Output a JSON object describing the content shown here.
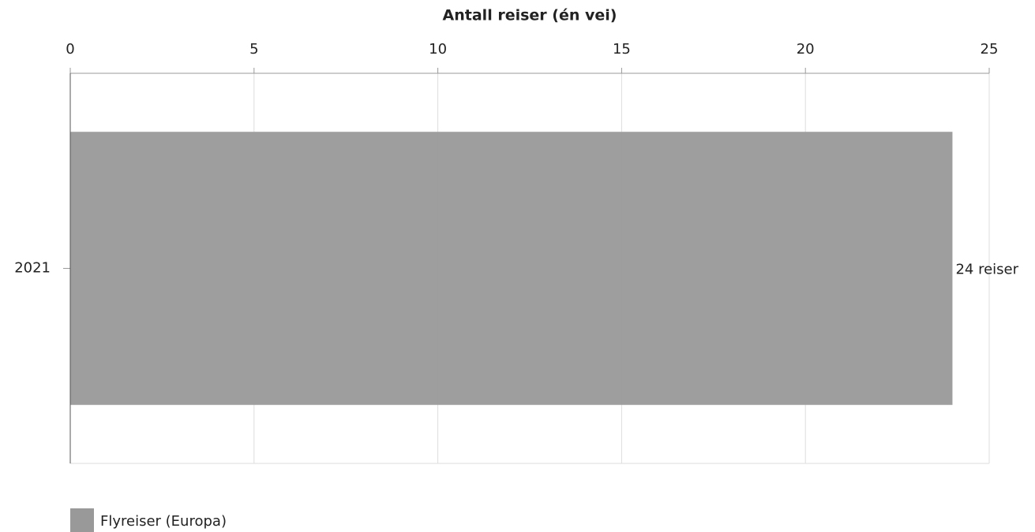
{
  "chart_data": {
    "type": "bar",
    "orientation": "horizontal",
    "x_label": "Antall reiser (én vei)",
    "categories": [
      "2021"
    ],
    "series": [
      {
        "name": "Flyreiser (Europa)",
        "color": "#999999",
        "values": [
          24
        ],
        "value_labels": [
          "24 reiser"
        ]
      }
    ],
    "xlim": [
      0,
      25
    ],
    "xticks": [
      0,
      5,
      10,
      15,
      20,
      25
    ],
    "grid": true,
    "legend": "bottom-left"
  }
}
